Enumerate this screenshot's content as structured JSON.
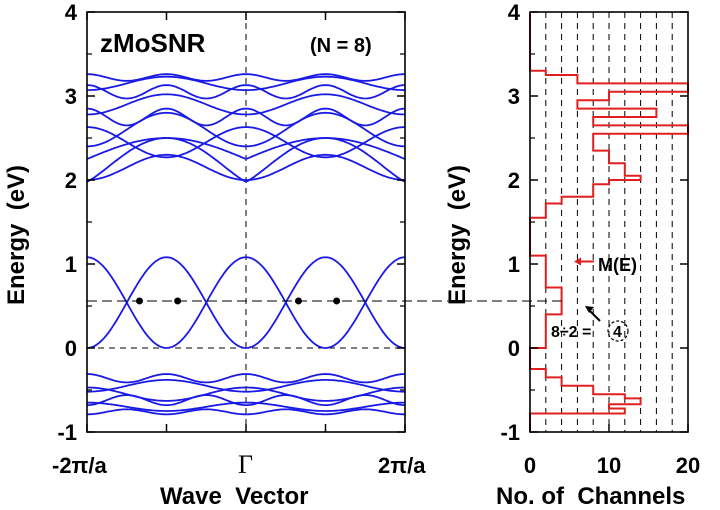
{
  "chart_data": [
    {
      "type": "line",
      "panel": "band-structure",
      "annotation_name": "zMoSNR",
      "annotation_n": "(N = 8)",
      "xlabel": "Wave  Vector",
      "ylabel": "Energy  (eV)",
      "xticks": [
        "-2π/a",
        "Γ",
        "2π/a"
      ],
      "xlim": [
        -1,
        1
      ],
      "ylim": [
        -1,
        4
      ],
      "yticks": [
        "-1",
        "0",
        "1",
        "2",
        "3",
        "4"
      ],
      "line_color": "#1a1ae6",
      "fermi_reference_line": 0,
      "probe_energy_line": 0.56,
      "marked_points": [
        {
          "k": -0.67,
          "E": 0.56
        },
        {
          "k": -0.43,
          "E": 0.56
        },
        {
          "k": 0.33,
          "E": 0.56
        },
        {
          "k": 0.57,
          "E": 0.56
        }
      ],
      "bands_description": "Conduction subbands from 0 to 1.1 eV crossing in the BZ, flat bands near 2–3.3 eV, valence bands between -0.8 and -0.3 eV"
    },
    {
      "type": "step",
      "panel": "channels",
      "xlabel": "No. of  Channels",
      "ylabel": "Energy  (eV)",
      "xlim": [
        0,
        20
      ],
      "ylim": [
        -1,
        4
      ],
      "xticks": [
        "0",
        "10",
        "20"
      ],
      "yticks": [
        "-1",
        "0",
        "1",
        "2",
        "3",
        "4"
      ],
      "line_color": "#e02020",
      "annotation_me": "M(E)",
      "annotation_eq": "8÷2 =",
      "annotation_circled": "4",
      "steps": [
        {
          "E": -1.0,
          "channels": 0
        },
        {
          "E": -0.78,
          "channels": 12
        },
        {
          "E": -0.72,
          "channels": 10
        },
        {
          "E": -0.67,
          "channels": 14
        },
        {
          "E": -0.6,
          "channels": 12
        },
        {
          "E": -0.55,
          "channels": 8
        },
        {
          "E": -0.45,
          "channels": 4
        },
        {
          "E": -0.35,
          "channels": 2
        },
        {
          "E": -0.25,
          "channels": 0
        },
        {
          "E": 0.0,
          "channels": 0
        },
        {
          "E": 0.0,
          "channels": 2
        },
        {
          "E": 0.4,
          "channels": 2
        },
        {
          "E": 0.4,
          "channels": 4
        },
        {
          "E": 0.72,
          "channels": 4
        },
        {
          "E": 0.72,
          "channels": 2
        },
        {
          "E": 1.1,
          "channels": 2
        },
        {
          "E": 1.1,
          "channels": 0
        },
        {
          "E": 1.55,
          "channels": 2
        },
        {
          "E": 1.72,
          "channels": 4
        },
        {
          "E": 1.8,
          "channels": 8
        },
        {
          "E": 1.95,
          "channels": 10
        },
        {
          "E": 2.0,
          "channels": 14
        },
        {
          "E": 2.05,
          "channels": 12
        },
        {
          "E": 2.2,
          "channels": 10
        },
        {
          "E": 2.35,
          "channels": 8
        },
        {
          "E": 2.55,
          "channels": 20
        },
        {
          "E": 2.65,
          "channels": 8
        },
        {
          "E": 2.75,
          "channels": 16
        },
        {
          "E": 2.85,
          "channels": 6
        },
        {
          "E": 2.95,
          "channels": 10
        },
        {
          "E": 3.05,
          "channels": 20
        },
        {
          "E": 3.15,
          "channels": 6
        },
        {
          "E": 3.25,
          "channels": 2
        },
        {
          "E": 3.3,
          "channels": 0
        },
        {
          "E": 4.0,
          "channels": 0
        }
      ]
    }
  ]
}
